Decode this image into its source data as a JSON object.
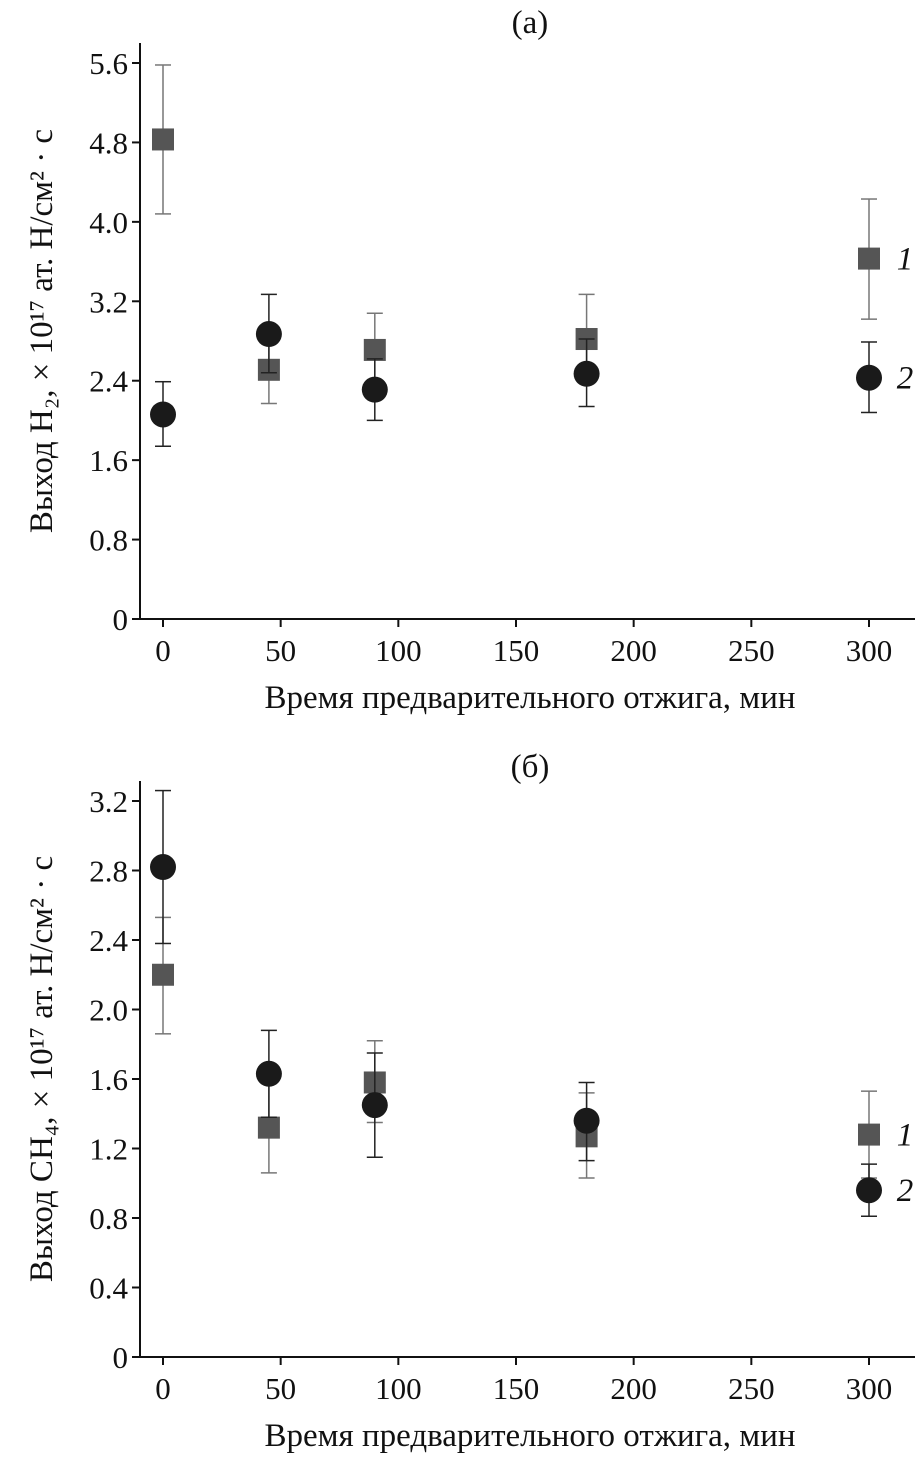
{
  "chart_data": [
    {
      "type": "scatter",
      "title": "(а)",
      "xlabel": "Время предварительного отжига, мин",
      "ylabel": "Выход H₂, × 10¹⁷ ат. H/см² · с",
      "xlim": [
        -10,
        322
      ],
      "ylim": [
        0,
        5.6
      ],
      "xticks": [
        0,
        50,
        100,
        150,
        200,
        250,
        300
      ],
      "yticks": [
        0,
        0.8,
        1.6,
        2.4,
        3.2,
        4.0,
        4.8,
        5.6
      ],
      "ytick_labels": [
        "0",
        "0.8",
        "1.6",
        "2.4",
        "3.2",
        "4.0",
        "4.8",
        "5.6"
      ],
      "grid": false,
      "series": [
        {
          "name": "1",
          "marker": "square",
          "color": "#555555",
          "x": [
            0,
            45,
            90,
            180,
            300
          ],
          "y": [
            4.83,
            2.51,
            2.71,
            2.82,
            3.63
          ],
          "err_low": [
            4.08,
            2.17,
            2.35,
            2.48,
            3.02
          ],
          "err_high": [
            5.58,
            2.85,
            3.08,
            3.27,
            4.23
          ]
        },
        {
          "name": "2",
          "marker": "circle",
          "color": "#1a1a1a",
          "x": [
            0,
            45,
            90,
            180,
            300
          ],
          "y": [
            2.06,
            2.87,
            2.31,
            2.47,
            2.43
          ],
          "err_low": [
            1.74,
            2.48,
            2.0,
            2.14,
            2.08
          ],
          "err_high": [
            2.39,
            3.27,
            2.62,
            2.82,
            2.79
          ]
        }
      ]
    },
    {
      "type": "scatter",
      "title": "(б)",
      "xlabel": "Время предварительного отжига, мин",
      "ylabel": "Выход CH₄, × 10¹⁷ ат. H/см² · с",
      "xlim": [
        -10,
        322
      ],
      "ylim": [
        0,
        3.2
      ],
      "xticks": [
        0,
        50,
        100,
        150,
        200,
        250,
        300
      ],
      "yticks": [
        0,
        0.4,
        0.8,
        1.2,
        1.6,
        2.0,
        2.4,
        2.8,
        3.2
      ],
      "ytick_labels": [
        "0",
        "0.4",
        "0.8",
        "1.2",
        "1.6",
        "2.0",
        "2.4",
        "2.8",
        "3.2"
      ],
      "grid": false,
      "series": [
        {
          "name": "1",
          "marker": "square",
          "color": "#555555",
          "x": [
            0,
            45,
            90,
            180,
            300
          ],
          "y": [
            2.2,
            1.32,
            1.58,
            1.27,
            1.28
          ],
          "err_low": [
            1.86,
            1.06,
            1.35,
            1.03,
            1.03
          ],
          "err_high": [
            2.53,
            1.6,
            1.82,
            1.52,
            1.53
          ]
        },
        {
          "name": "2",
          "marker": "circle",
          "color": "#1a1a1a",
          "x": [
            0,
            45,
            90,
            180,
            300
          ],
          "y": [
            2.82,
            1.63,
            1.45,
            1.36,
            0.96
          ],
          "err_low": [
            2.38,
            1.38,
            1.15,
            1.13,
            0.81
          ],
          "err_high": [
            3.26,
            1.88,
            1.75,
            1.58,
            1.11
          ]
        }
      ]
    }
  ]
}
